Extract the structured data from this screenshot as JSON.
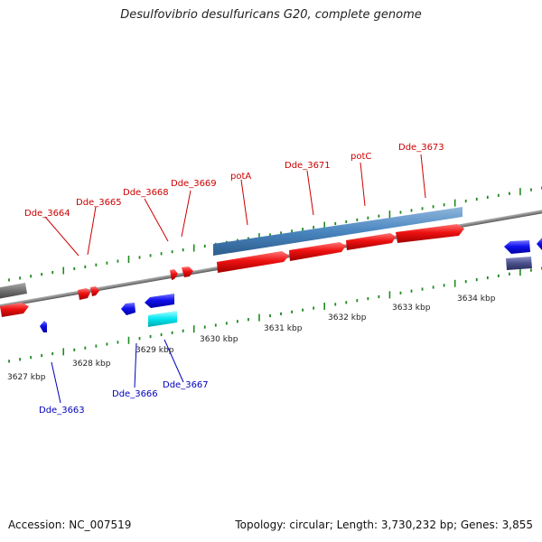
{
  "title": "Desulfovibrio desulfuricans G20, complete genome",
  "footer": {
    "accession": "Accession: NC_007519",
    "summary": "Topology: circular; Length: 3,730,232 bp; Genes: 3,855"
  },
  "colors": {
    "backbone": "#8a8a8a",
    "tick": "#1f8a1f",
    "forward_gene": "#ee1111",
    "reverse_gene": "#1111ee",
    "forward_label": "#cc0000",
    "reverse_label": "#0000bb",
    "cds_feature": "#4a86c0",
    "misc_feature": "#00e5f0",
    "dark_feature": "#4a4f8a",
    "gray_feature": "#707070"
  },
  "ruler": {
    "unit": "kbp",
    "ticks": [
      {
        "label": "3627 kbp",
        "value": 3627
      },
      {
        "label": "3628 kbp",
        "value": 3628
      },
      {
        "label": "3629 kbp",
        "value": 3629
      },
      {
        "label": "3630 kbp",
        "value": 3630
      },
      {
        "label": "3631 kbp",
        "value": 3631
      },
      {
        "label": "3632 kbp",
        "value": 3632
      },
      {
        "label": "3633 kbp",
        "value": 3633
      },
      {
        "label": "3634 kbp",
        "value": 3634
      }
    ]
  },
  "forward_labels": [
    "Dde_3664",
    "Dde_3665",
    "Dde_3668",
    "Dde_3669",
    "potA",
    "Dde_3671",
    "potC",
    "Dde_3673"
  ],
  "reverse_labels": [
    "Dde_3663",
    "Dde_3666",
    "Dde_3667"
  ]
}
